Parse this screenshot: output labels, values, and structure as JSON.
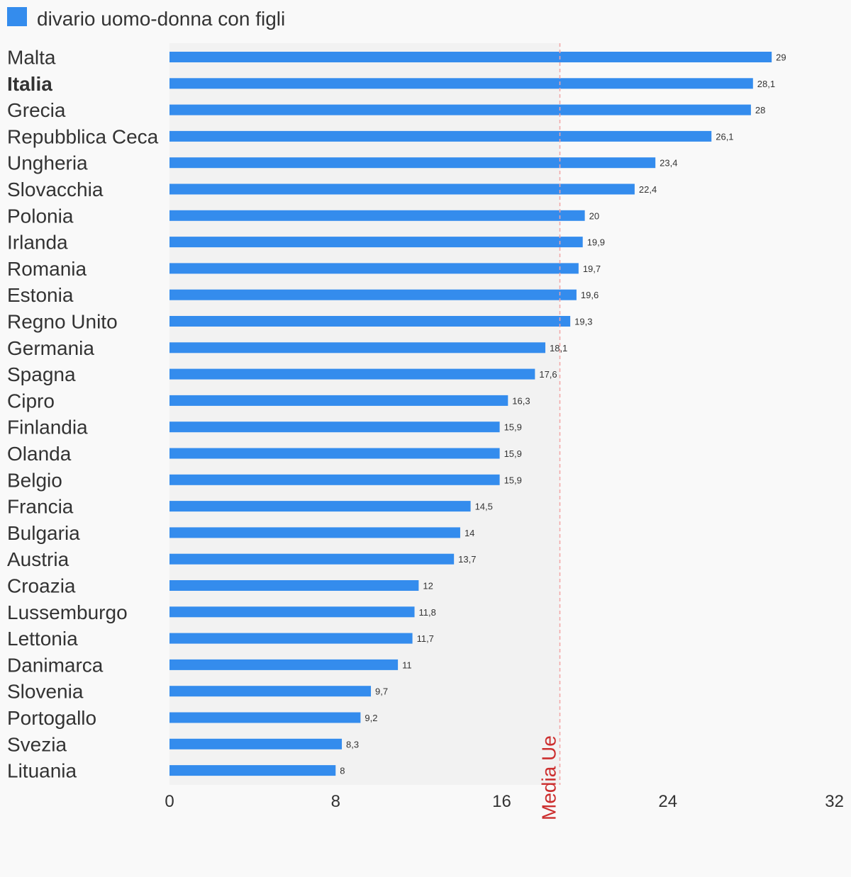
{
  "chart_data": {
    "type": "bar",
    "orientation": "horizontal",
    "legend": {
      "label": "divario uomo-donna con figli",
      "color": "#348ced",
      "placement": "top-left"
    },
    "categories": [
      "Malta",
      "Italia",
      "Grecia",
      "Repubblica Ceca",
      "Ungheria",
      "Slovacchia",
      "Polonia",
      "Irlanda",
      "Romania",
      "Estonia",
      "Regno Unito",
      "Germania",
      "Spagna",
      "Cipro",
      "Finlandia",
      "Olanda",
      "Belgio",
      "Francia",
      "Bulgaria",
      "Austria",
      "Croazia",
      "Lussemburgo",
      "Lettonia",
      "Danimarca",
      "Slovenia",
      "Portogallo",
      "Svezia",
      "Lituania"
    ],
    "highlighted_category": "Italia",
    "series": [
      {
        "name": "divario uomo-donna con figli",
        "values": [
          29,
          28.1,
          28,
          26.1,
          23.4,
          22.4,
          20,
          19.9,
          19.7,
          19.6,
          19.3,
          18.1,
          17.6,
          16.3,
          15.9,
          15.9,
          15.9,
          14.5,
          14,
          13.7,
          12,
          11.8,
          11.7,
          11,
          9.7,
          9.2,
          8.3,
          8
        ],
        "data_labels": [
          "29",
          "28,1",
          "28",
          "26,1",
          "23,4",
          "22,4",
          "20",
          "19,9",
          "19,7",
          "19,6",
          "19,3",
          "18,1",
          "17,6",
          "16,3",
          "15,9",
          "15,9",
          "15,9",
          "14,5",
          "14",
          "13,7",
          "12",
          "11,8",
          "11,7",
          "11",
          "9,7",
          "9,2",
          "8,3",
          "8"
        ],
        "color": "#348ced"
      }
    ],
    "reference_line": {
      "label": "Media Ue",
      "value": 18.8,
      "color": "#cc2e2e"
    },
    "xlim": [
      0,
      32
    ],
    "xticks": [
      0,
      8,
      16,
      24,
      32
    ],
    "xtick_labels": [
      "0",
      "8",
      "16",
      "24",
      "32"
    ],
    "grid": false,
    "colors": {
      "background": "#f9f9f9",
      "band": "#f2f2f2",
      "text": "#333333"
    }
  }
}
